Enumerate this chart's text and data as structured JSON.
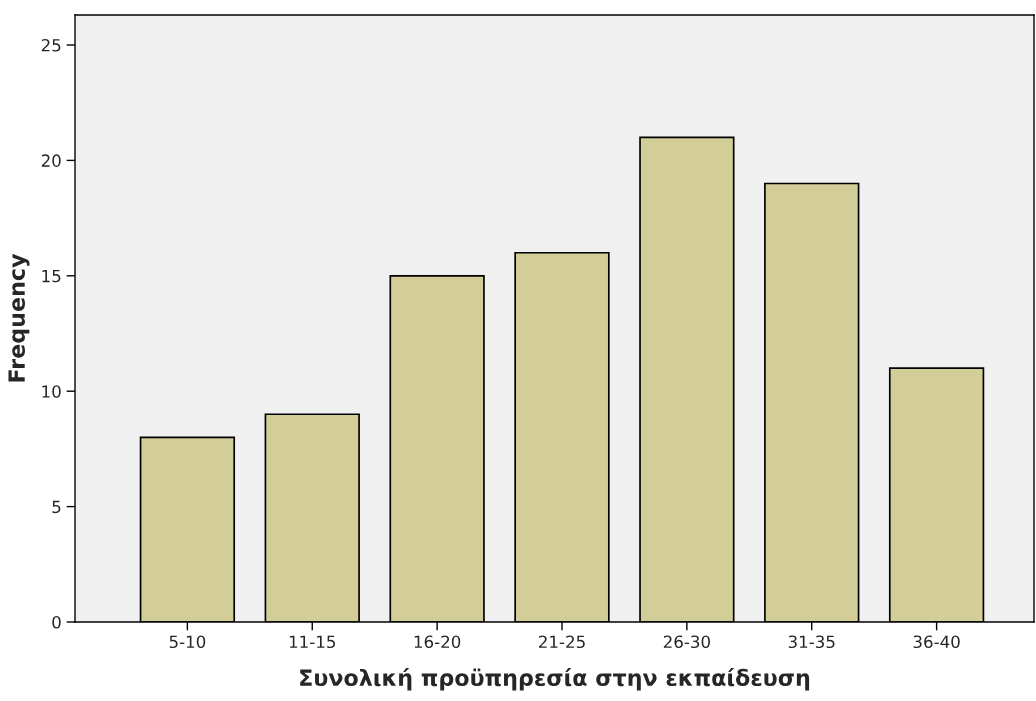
{
  "chart_data": {
    "type": "bar",
    "xlabel": "Συνολική προϋπηρεσία στην εκπαίδευση",
    "ylabel": "Frequency",
    "categories": [
      "5-10",
      "11-15",
      "16-20",
      "21-25",
      "26-30",
      "31-35",
      "36-40"
    ],
    "values": [
      8,
      9,
      15,
      16,
      21,
      19,
      11
    ],
    "color": "#d3ce97",
    "ylim": [
      0,
      26.3
    ],
    "yticks": [
      0,
      5,
      10,
      15,
      20,
      25
    ],
    "grid": false,
    "legend": false
  }
}
